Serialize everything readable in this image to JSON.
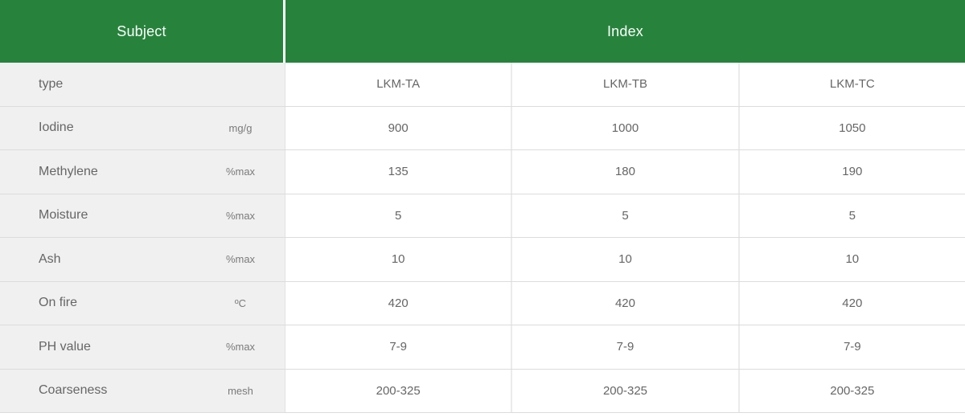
{
  "colors": {
    "header_green": "#27833c",
    "header_text": "#fcfcfc",
    "label_column_bg": "#f0f0f0",
    "border": "#dcdcdc",
    "body_text": "#666666"
  },
  "table": {
    "headers": {
      "subject": "Subject",
      "index": "Index"
    },
    "column_names": [
      "LKM-TA",
      "LKM-TB",
      "LKM-TC"
    ],
    "rows": [
      {
        "label": "type",
        "unit": "",
        "values": [
          "LKM-TA",
          "LKM-TB",
          "LKM-TC"
        ]
      },
      {
        "label": "Iodine",
        "unit": "mg/g",
        "values": [
          "900",
          "1000",
          "1050"
        ]
      },
      {
        "label": "Methylene",
        "unit": "%max",
        "values": [
          "135",
          "180",
          "190"
        ]
      },
      {
        "label": "Moisture",
        "unit": "%max",
        "values": [
          "5",
          "5",
          "5"
        ]
      },
      {
        "label": "Ash",
        "unit": "%max",
        "values": [
          "10",
          "10",
          "10"
        ]
      },
      {
        "label": "On fire",
        "unit": "ºC",
        "values": [
          "420",
          "420",
          "420"
        ]
      },
      {
        "label": "PH value",
        "unit": "%max",
        "values": [
          "7-9",
          "7-9",
          "7-9"
        ]
      },
      {
        "label": "Coarseness",
        "unit": "mesh",
        "values": [
          "200-325",
          "200-325",
          "200-325"
        ]
      }
    ]
  }
}
